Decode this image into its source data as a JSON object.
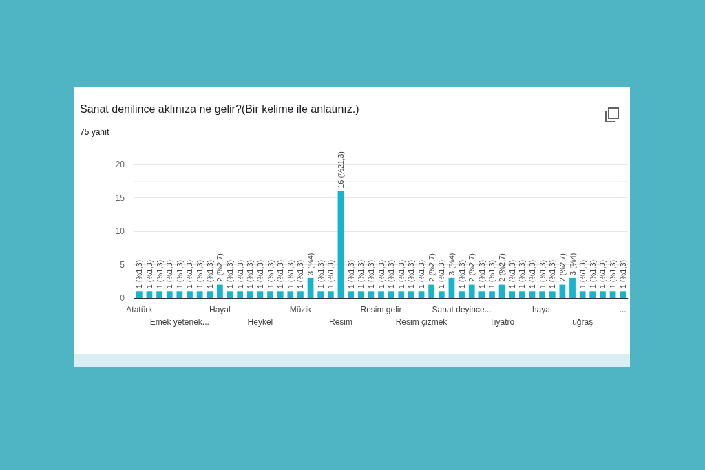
{
  "chart_data": {
    "type": "bar",
    "title": "Sanat denilince aklınıza ne gelir?(Bir kelime ile anlatınız.)",
    "subtitle": "75 yanıt",
    "categories": [
      "Atatürk",
      null,
      null,
      null,
      "Emek yetenek...",
      null,
      null,
      null,
      "Hayal",
      null,
      null,
      null,
      "Heykel",
      null,
      null,
      null,
      "Müzik",
      null,
      null,
      null,
      "Resim",
      null,
      null,
      null,
      "Resim gelir",
      null,
      null,
      null,
      "Resim çizmek",
      null,
      null,
      null,
      "Sanat deyince...",
      null,
      null,
      null,
      "Tiyatro",
      null,
      null,
      null,
      "hayat",
      null,
      null,
      null,
      "uğraş",
      null,
      null,
      null,
      "..."
    ],
    "values": [
      1,
      1,
      1,
      1,
      1,
      1,
      1,
      1,
      2,
      1,
      1,
      1,
      1,
      1,
      1,
      1,
      1,
      3,
      1,
      1,
      16,
      1,
      1,
      1,
      1,
      1,
      1,
      1,
      1,
      2,
      1,
      3,
      1,
      2,
      1,
      1,
      2,
      1,
      1,
      1,
      1,
      1,
      2,
      3,
      1,
      1,
      1,
      1,
      1
    ],
    "value_labels": [
      "1 (%1,3)",
      "1 (%1,3)",
      "1 (%1,3)",
      "1 (%1,3)",
      "1 (%1,3)",
      "1 (%1,3)",
      "1 (%1,3)",
      "1 (%1,3)",
      "2 (%2,7)",
      "1 (%1,3)",
      "1 (%1,3)",
      "1 (%1,3)",
      "1 (%1,3)",
      "1 (%1,3)",
      "1 (%1,3)",
      "1 (%1,3)",
      "1 (%1,3)",
      "3 (%4)",
      "1 (%1,3)",
      "1 (%1,3)",
      "16 (%21,3)",
      "1 (%1,3)",
      "1 (%1,3)",
      "1 (%1,3)",
      "1 (%1,3)",
      "1 (%1,3)",
      "1 (%1,3)",
      "1 (%1,3)",
      "1 (%1,3)",
      "2 (%2,7)",
      "1 (%1,3)",
      "3 (%4)",
      "1 (%1,3)",
      "2 (%2,7)",
      "1 (%1,3)",
      "1 (%1,3)",
      "2 (%2,7)",
      "1 (%1,3)",
      "1 (%1,3)",
      "1 (%1,3)",
      "1 (%1,3)",
      "1 (%1,3)",
      "2 (%2,7)",
      "3 (%4)",
      "1 (%1,3)",
      "1 (%1,3)",
      "1 (%1,3)",
      "1 (%1,3)",
      "1 (%1,3)"
    ],
    "color": "#18b4c9",
    "ylim": [
      0,
      20
    ],
    "yticks": [
      0,
      5,
      10,
      15,
      20
    ],
    "grid": "y"
  }
}
